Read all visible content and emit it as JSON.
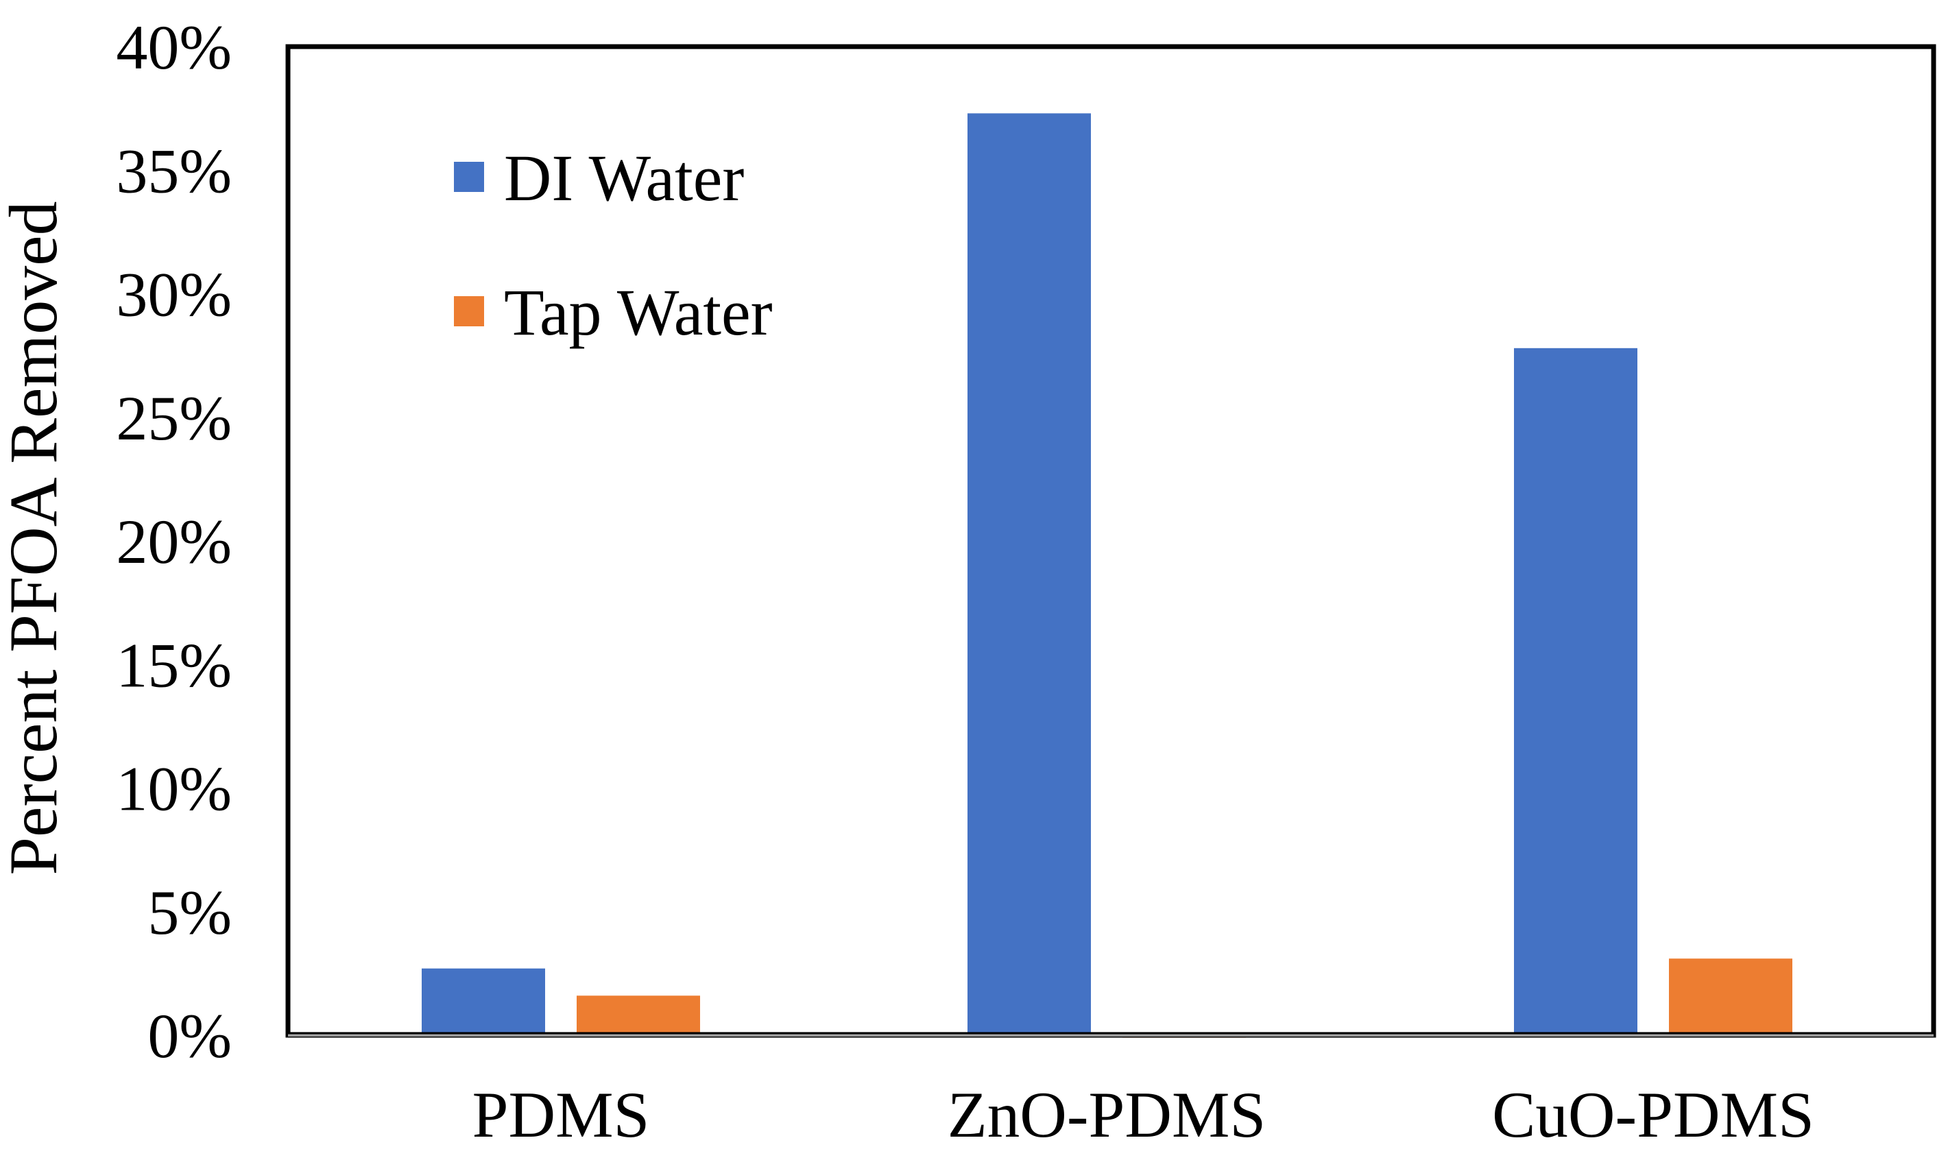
{
  "chart_data": {
    "type": "bar",
    "title": "",
    "xlabel": "",
    "ylabel": "Percent PFOA Removed",
    "ylim": [
      0,
      0.4
    ],
    "yticks": [
      0,
      0.05,
      0.1,
      0.15,
      0.2,
      0.25,
      0.3,
      0.35,
      0.4
    ],
    "ytick_labels": [
      "0%",
      "5%",
      "10%",
      "15%",
      "20%",
      "25%",
      "30%",
      "35%",
      "40%"
    ],
    "categories": [
      "PDMS",
      "ZnO-PDMS",
      "CuO-PDMS"
    ],
    "series": [
      {
        "name": "DI Water",
        "color": "#4472C4",
        "values": [
          0.027,
          0.373,
          0.278
        ]
      },
      {
        "name": "Tap Water",
        "color": "#ED7D31",
        "values": [
          0.016,
          -0.001,
          0.031
        ]
      }
    ],
    "grid": false,
    "legend_position": "top-left"
  }
}
